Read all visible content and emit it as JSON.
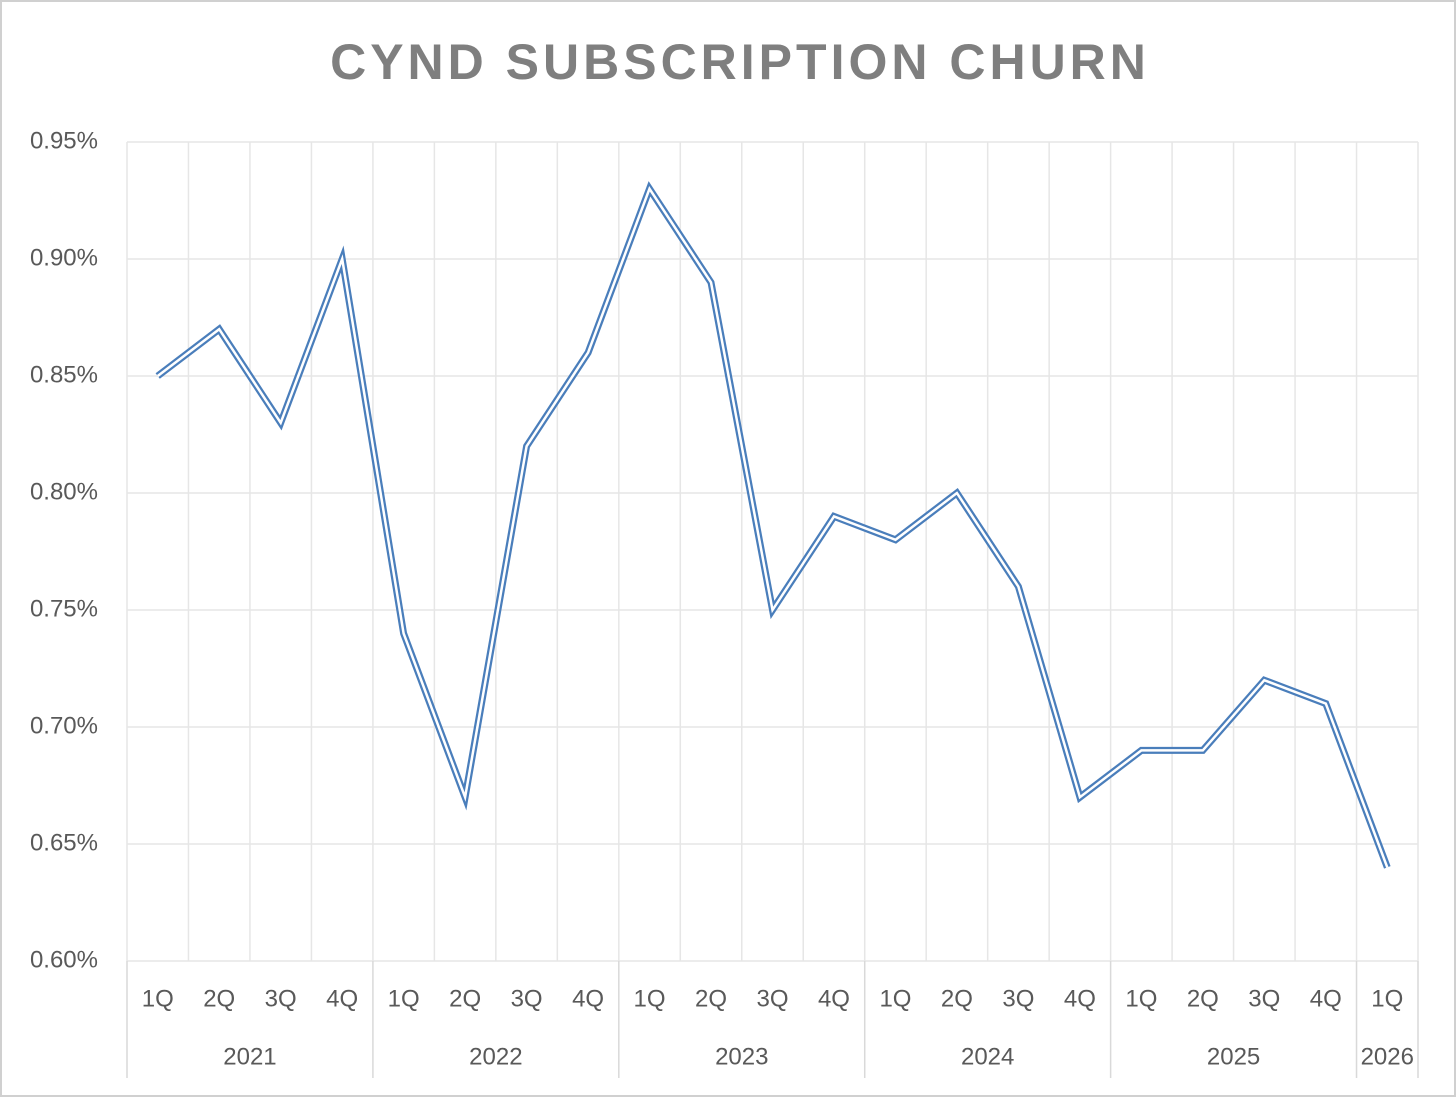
{
  "chart_data": {
    "type": "line",
    "title": "CYND SUBSCRIPTION CHURN",
    "categories": [
      "1Q",
      "2Q",
      "3Q",
      "4Q",
      "1Q",
      "2Q",
      "3Q",
      "4Q",
      "1Q",
      "2Q",
      "3Q",
      "4Q",
      "1Q",
      "2Q",
      "3Q",
      "4Q",
      "1Q",
      "2Q",
      "3Q",
      "4Q",
      "1Q"
    ],
    "groups": [
      {
        "label": "2021",
        "count": 4
      },
      {
        "label": "2022",
        "count": 4
      },
      {
        "label": "2023",
        "count": 4
      },
      {
        "label": "2024",
        "count": 4
      },
      {
        "label": "2025",
        "count": 4
      },
      {
        "label": "2026",
        "count": 1
      }
    ],
    "values": [
      0.85,
      0.87,
      0.83,
      0.9,
      0.74,
      0.67,
      0.82,
      0.86,
      0.93,
      0.89,
      0.75,
      0.79,
      0.78,
      0.8,
      0.76,
      0.67,
      0.69,
      0.69,
      0.72,
      0.71,
      0.64
    ],
    "color": "#4a7ebb",
    "ylim": [
      0.6,
      0.95
    ],
    "yticks": [
      {
        "value": 0.6,
        "label": "0.60%"
      },
      {
        "value": 0.65,
        "label": "0.65%"
      },
      {
        "value": 0.7,
        "label": "0.70%"
      },
      {
        "value": 0.75,
        "label": "0.75%"
      },
      {
        "value": 0.8,
        "label": "0.80%"
      },
      {
        "value": 0.85,
        "label": "0.85%"
      },
      {
        "value": 0.9,
        "label": "0.90%"
      },
      {
        "value": 0.95,
        "label": "0.95%"
      }
    ],
    "grid": true
  }
}
